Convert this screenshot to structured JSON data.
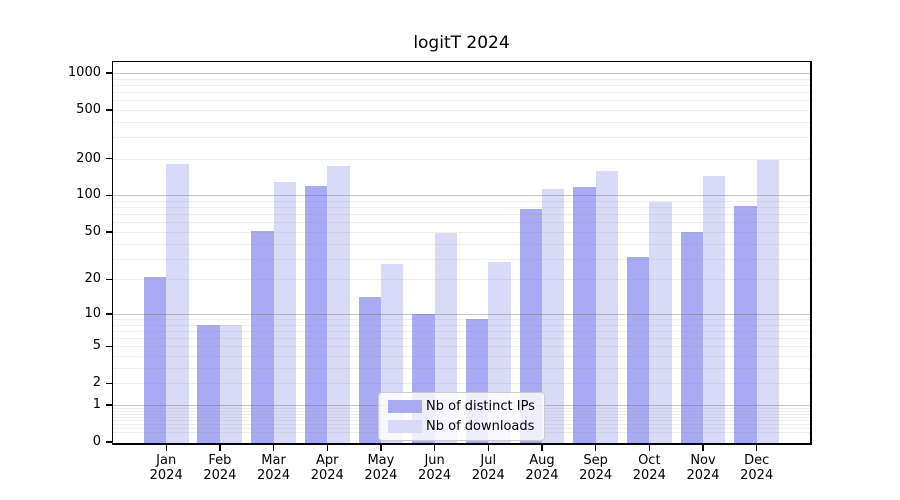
{
  "chart_data": {
    "type": "bar",
    "title": "logitT 2024",
    "categories": [
      "Jan 2024",
      "Feb 2024",
      "Mar 2024",
      "Apr 2024",
      "May 2024",
      "Jun 2024",
      "Jul 2024",
      "Aug 2024",
      "Sep 2024",
      "Oct 2024",
      "Nov 2024",
      "Dec 2024"
    ],
    "month_labels": [
      "Jan",
      "Feb",
      "Mar",
      "Apr",
      "May",
      "Jun",
      "Jul",
      "Aug",
      "Sep",
      "Oct",
      "Nov",
      "Dec"
    ],
    "year_label": "2024",
    "series": [
      {
        "name": "Nb of distinct IPs",
        "color": "#a9a9f4",
        "values": [
          21,
          8,
          51,
          120,
          14,
          10,
          9,
          77,
          118,
          31,
          50,
          82
        ]
      },
      {
        "name": "Nb of downloads",
        "color": "#d9d9f8",
        "values": [
          180,
          8,
          130,
          175,
          27,
          49,
          28,
          112,
          160,
          88,
          145,
          195
        ]
      }
    ],
    "yticks": [
      1000,
      500,
      200,
      100,
      50,
      20,
      10,
      5,
      2,
      1,
      0
    ],
    "yscale": "log10(1+y)",
    "ylim": [
      0,
      1228
    ],
    "grid": true,
    "legend_position": "bottom-center",
    "colors": {
      "spine": "#000000",
      "grid_major": "#c5c5c5",
      "grid_minor": "#eeeeee",
      "grid_major_overlay": "rgba(110,110,110,0.40)",
      "grid_minor_overlay": "rgba(150,150,150,0.16)",
      "legend_border": "#cccccc",
      "background": "#ffffff"
    }
  }
}
